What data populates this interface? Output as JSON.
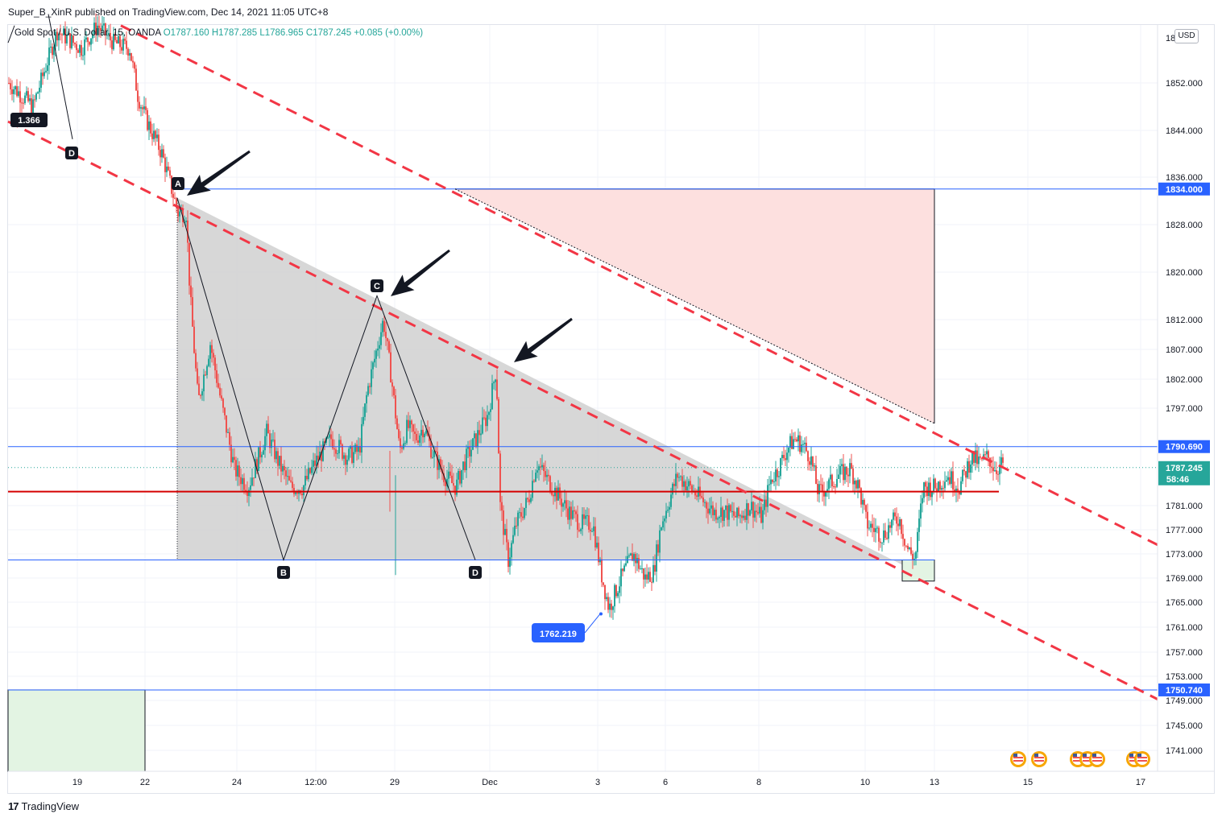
{
  "header": {
    "published": "Super_B_XinR published on TradingView.com, Dec 14, 2021 11:05 UTC+8"
  },
  "legend": {
    "symbol": "Gold Spot / U.S. Dollar, 15, OANDA",
    "open": "O1787.160",
    "high": "H1787.285",
    "low": "L1786.965",
    "close": "C1787.245",
    "change": "+0.085 (+0.00%)"
  },
  "currency_button": "USD",
  "footer": {
    "brand": "TradingView"
  },
  "colors": {
    "up": "#26a69a",
    "down": "#ef5350",
    "trendline": "#f23645",
    "hline": "#2962ff",
    "triangle_fill": "#d3d3d3",
    "short_target_fill": "#fde0df",
    "long_target_fill": "#e3f4e3",
    "support": "#d50000",
    "label_dark": "#131722",
    "tag_blue": "#2962ff",
    "tag_teal": "#26a69a"
  },
  "chart_data": {
    "type": "candlestick",
    "symbol": "Gold Spot / U.S. Dollar",
    "interval": "15",
    "ylim": [
      1737,
      1864
    ],
    "y_ticks": [
      1741,
      1745,
      1749,
      1753,
      1757,
      1761,
      1765,
      1769,
      1773,
      1777,
      1781,
      1797,
      1802,
      1807,
      1812,
      1820,
      1828,
      1836,
      1844,
      1852
    ],
    "y_tick_labels": [
      "1741.000",
      "1745.000",
      "1749.000",
      "1753.000",
      "1757.000",
      "1761.000",
      "1765.000",
      "1769.000",
      "1773.000",
      "1777.000",
      "1781.000",
      "1797.000",
      "1802.000",
      "1807.000",
      "1812.000",
      "1820.000",
      "1828.000",
      "1836.000",
      "1844.000",
      "1852.000"
    ],
    "x_labels": [
      "19",
      "22",
      "24",
      "12:00",
      "29",
      "Dec",
      "3",
      "6",
      "8",
      "10",
      "13",
      "15",
      "17"
    ],
    "price_tags": [
      {
        "value": 1834.0,
        "label": "1834.000",
        "color": "#2962ff"
      },
      {
        "value": 1790.69,
        "label": "1790.690",
        "color": "#2962ff"
      },
      {
        "value": 1787.245,
        "label": "1787.245",
        "sub": "58:46",
        "color": "#26a69a"
      },
      {
        "value": 1750.74,
        "label": "1750.740",
        "color": "#2962ff"
      }
    ],
    "horizontal_lines": [
      {
        "value": 1834.0,
        "color": "#2962ff"
      },
      {
        "value": 1790.69,
        "color": "#2962ff"
      },
      {
        "value": 1772.0,
        "color": "#2962ff"
      },
      {
        "value": 1750.74,
        "color": "#2962ff"
      },
      {
        "value": 1783.3,
        "color": "#d50000"
      }
    ],
    "current_price": 1787.245,
    "low_marker": {
      "value": 1762.219,
      "label": "1762.219"
    },
    "pattern_points": [
      {
        "label": "A",
        "price": 1834.0
      },
      {
        "label": "B",
        "price": 1772.0
      },
      {
        "label": "C",
        "price": 1816.0
      },
      {
        "label": "D",
        "price": 1772.0
      }
    ],
    "extension_label": "1.366",
    "extension_point_label": "D",
    "close_anchors": [
      [
        0,
        1852
      ],
      [
        30,
        1848
      ],
      [
        60,
        1861
      ],
      [
        90,
        1858
      ],
      [
        110,
        1862
      ],
      [
        130,
        1859
      ],
      [
        150,
        1858
      ],
      [
        160,
        1850
      ],
      [
        170,
        1846
      ],
      [
        190,
        1840
      ],
      [
        210,
        1830
      ],
      [
        220,
        1830
      ],
      [
        225,
        1816
      ],
      [
        235,
        1798
      ],
      [
        250,
        1808
      ],
      [
        265,
        1797
      ],
      [
        280,
        1787
      ],
      [
        297,
        1784
      ],
      [
        310,
        1789
      ],
      [
        320,
        1793
      ],
      [
        335,
        1788
      ],
      [
        350,
        1784
      ],
      [
        365,
        1784
      ],
      [
        380,
        1788
      ],
      [
        400,
        1792
      ],
      [
        420,
        1789
      ],
      [
        435,
        1790
      ],
      [
        445,
        1800
      ],
      [
        455,
        1806
      ],
      [
        465,
        1812
      ],
      [
        475,
        1802
      ],
      [
        485,
        1790
      ],
      [
        495,
        1794
      ],
      [
        505,
        1792
      ],
      [
        515,
        1794
      ],
      [
        525,
        1790
      ],
      [
        540,
        1786
      ],
      [
        555,
        1784
      ],
      [
        565,
        1788
      ],
      [
        580,
        1792
      ],
      [
        595,
        1796
      ],
      [
        605,
        1804
      ],
      [
        610,
        1781
      ],
      [
        620,
        1772
      ],
      [
        630,
        1778
      ],
      [
        645,
        1782
      ],
      [
        655,
        1788
      ],
      [
        665,
        1786
      ],
      [
        680,
        1783
      ],
      [
        695,
        1780
      ],
      [
        710,
        1778
      ],
      [
        725,
        1778
      ],
      [
        735,
        1770
      ],
      [
        745,
        1764
      ],
      [
        760,
        1769
      ],
      [
        775,
        1773
      ],
      [
        790,
        1769
      ],
      [
        800,
        1770
      ],
      [
        810,
        1778
      ],
      [
        820,
        1782
      ],
      [
        830,
        1786
      ],
      [
        845,
        1784
      ],
      [
        860,
        1782
      ],
      [
        875,
        1780
      ],
      [
        890,
        1780
      ],
      [
        905,
        1779
      ],
      [
        920,
        1781
      ],
      [
        935,
        1779
      ],
      [
        945,
        1785
      ],
      [
        955,
        1787
      ],
      [
        965,
        1790
      ],
      [
        975,
        1792
      ],
      [
        985,
        1791
      ],
      [
        995,
        1789
      ],
      [
        1005,
        1783
      ],
      [
        1015,
        1784
      ],
      [
        1030,
        1786
      ],
      [
        1045,
        1787
      ],
      [
        1055,
        1784
      ],
      [
        1065,
        1778
      ],
      [
        1075,
        1777
      ],
      [
        1085,
        1776
      ],
      [
        1095,
        1778
      ],
      [
        1105,
        1779
      ],
      [
        1115,
        1774
      ],
      [
        1125,
        1772
      ],
      [
        1135,
        1784
      ],
      [
        1150,
        1784
      ],
      [
        1165,
        1786
      ],
      [
        1180,
        1784
      ],
      [
        1195,
        1789
      ],
      [
        1205,
        1788
      ],
      [
        1215,
        1789
      ],
      [
        1225,
        1787
      ],
      [
        1235,
        1788
      ]
    ]
  }
}
